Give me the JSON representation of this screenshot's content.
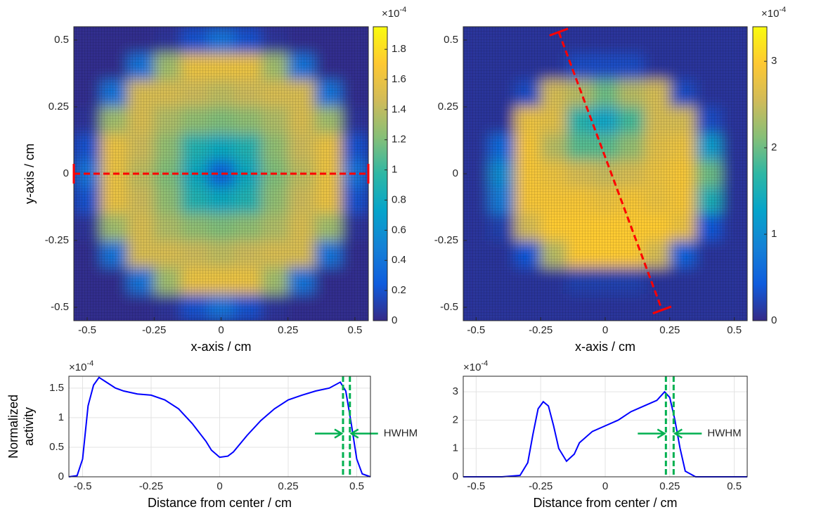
{
  "chart_data": [
    {
      "type": "heatmap",
      "colormap": "parula",
      "x": [
        -0.5,
        -0.4,
        -0.3,
        -0.2,
        -0.1,
        0,
        0.1,
        0.2,
        0.3,
        0.4,
        0.5
      ],
      "y": [
        0.5,
        0.4,
        0.3,
        0.2,
        0.1,
        0,
        -0.1,
        -0.2,
        -0.3,
        -0.4,
        -0.5
      ],
      "z": [
        [
          0.02,
          0.02,
          0.02,
          0.05,
          0.2,
          0.4,
          0.2,
          0.05,
          0.02,
          0.02,
          0.02
        ],
        [
          0.02,
          0.02,
          0.4,
          1.3,
          1.6,
          1.6,
          1.6,
          1.3,
          0.4,
          0.02,
          0.02
        ],
        [
          0.02,
          0.4,
          1.5,
          1.5,
          1.45,
          1.4,
          1.45,
          1.5,
          1.5,
          0.4,
          0.02
        ],
        [
          0.05,
          1.3,
          1.5,
          1.35,
          1.25,
          1.2,
          1.25,
          1.35,
          1.5,
          1.3,
          0.05
        ],
        [
          0.2,
          1.6,
          1.45,
          1.25,
          0.9,
          0.8,
          0.9,
          1.25,
          1.45,
          1.6,
          0.2
        ],
        [
          0.4,
          1.6,
          1.4,
          1.2,
          0.8,
          0.3,
          0.8,
          1.2,
          1.4,
          1.6,
          0.4
        ],
        [
          0.2,
          1.6,
          1.45,
          1.25,
          0.9,
          0.8,
          0.9,
          1.25,
          1.45,
          1.6,
          0.2
        ],
        [
          0.05,
          1.3,
          1.5,
          1.35,
          1.25,
          1.2,
          1.25,
          1.35,
          1.5,
          1.3,
          0.05
        ],
        [
          0.02,
          0.4,
          1.5,
          1.5,
          1.45,
          1.4,
          1.45,
          1.5,
          1.5,
          0.4,
          0.02
        ],
        [
          0.02,
          0.02,
          0.4,
          1.3,
          1.6,
          1.6,
          1.6,
          1.3,
          0.4,
          0.02,
          0.02
        ],
        [
          0.02,
          0.02,
          0.02,
          0.05,
          0.2,
          0.4,
          0.2,
          0.05,
          0.02,
          0.02,
          0.02
        ]
      ],
      "xlim": [
        -0.55,
        0.55
      ],
      "ylim": [
        -0.55,
        0.55
      ],
      "xticks": [
        -0.5,
        -0.25,
        0,
        0.25,
        0.5
      ],
      "yticks": [
        -0.5,
        -0.25,
        0,
        0.25,
        0.5
      ],
      "xlabel": "x-axis / cm",
      "ylabel": "y-axis / cm",
      "colorbar": {
        "clim": [
          0,
          1.95
        ],
        "ticks": [
          0,
          0.2,
          0.4,
          0.6,
          0.8,
          1,
          1.2,
          1.4,
          1.6,
          1.8
        ],
        "multiplier_base": "×10",
        "multiplier_exponent": "-4"
      },
      "profile": {
        "x": [
          -0.55,
          0.55
        ],
        "y": [
          0,
          0
        ],
        "color": "#ff0000"
      }
    },
    {
      "type": "heatmap",
      "colormap": "parula",
      "x": [
        -0.5,
        -0.4,
        -0.3,
        -0.2,
        -0.1,
        0,
        0.1,
        0.2,
        0.3,
        0.4,
        0.5
      ],
      "y": [
        0.5,
        0.4,
        0.3,
        0.2,
        0.1,
        0,
        -0.1,
        -0.2,
        -0.3,
        -0.4,
        -0.5
      ],
      "z": [
        [
          0.1,
          0.1,
          0.1,
          0.1,
          0.1,
          0.1,
          0.1,
          0.1,
          0.1,
          0.1,
          0.1
        ],
        [
          0.1,
          0.1,
          0.1,
          0.1,
          0.3,
          0.3,
          0.3,
          0.1,
          0.1,
          0.1,
          0.1
        ],
        [
          0.1,
          0.1,
          0.3,
          2.6,
          2.4,
          2.0,
          2.4,
          2.6,
          0.3,
          0.1,
          0.1
        ],
        [
          0.1,
          0.1,
          2.8,
          2.7,
          1.6,
          1.3,
          1.8,
          2.6,
          2.6,
          0.3,
          0.1
        ],
        [
          0.1,
          0.6,
          2.9,
          2.4,
          1.9,
          1.9,
          2.2,
          2.7,
          2.8,
          1.2,
          0.1
        ],
        [
          0.1,
          1.0,
          2.9,
          2.8,
          2.6,
          2.5,
          2.6,
          2.8,
          2.9,
          2.0,
          0.1
        ],
        [
          0.1,
          0.8,
          2.9,
          2.9,
          2.9,
          2.8,
          2.9,
          2.8,
          2.9,
          1.5,
          0.1
        ],
        [
          0.1,
          0.2,
          2.6,
          3.0,
          3.0,
          3.0,
          3.0,
          3.0,
          2.8,
          0.4,
          0.1
        ],
        [
          0.1,
          0.1,
          0.4,
          2.4,
          3.0,
          3.0,
          3.0,
          2.6,
          0.5,
          0.1,
          0.1
        ],
        [
          0.1,
          0.1,
          0.1,
          0.1,
          0.2,
          0.2,
          0.2,
          0.1,
          0.1,
          0.1,
          0.1
        ],
        [
          0.1,
          0.1,
          0.1,
          0.1,
          0.1,
          0.1,
          0.1,
          0.1,
          0.1,
          0.1,
          0.1
        ]
      ],
      "xlim": [
        -0.55,
        0.55
      ],
      "ylim": [
        -0.55,
        0.55
      ],
      "xticks": [
        -0.5,
        -0.25,
        0,
        0.25,
        0.5
      ],
      "yticks": [
        -0.5,
        -0.25,
        0,
        0.25,
        0.5
      ],
      "xlabel": "x-axis / cm",
      "colorbar": {
        "clim": [
          0,
          3.4
        ],
        "ticks": [
          0,
          1,
          2,
          3
        ],
        "multiplier_base": "×10",
        "multiplier_exponent": "-4"
      },
      "profile": {
        "x": [
          -0.18,
          0.22
        ],
        "y": [
          0.53,
          -0.51
        ],
        "color": "#ff0000"
      }
    },
    {
      "type": "line",
      "color": "#0000ff",
      "grid": true,
      "x": [
        -0.55,
        -0.52,
        -0.5,
        -0.48,
        -0.46,
        -0.44,
        -0.42,
        -0.38,
        -0.35,
        -0.3,
        -0.25,
        -0.2,
        -0.15,
        -0.1,
        -0.05,
        -0.03,
        0,
        0.03,
        0.05,
        0.1,
        0.15,
        0.2,
        0.25,
        0.3,
        0.35,
        0.4,
        0.44,
        0.46,
        0.48,
        0.5,
        0.52,
        0.55
      ],
      "values": [
        0,
        0.02,
        0.3,
        1.2,
        1.55,
        1.68,
        1.62,
        1.5,
        1.45,
        1.4,
        1.38,
        1.3,
        1.15,
        0.9,
        0.6,
        0.45,
        0.33,
        0.35,
        0.42,
        0.7,
        0.95,
        1.15,
        1.3,
        1.38,
        1.45,
        1.5,
        1.6,
        1.45,
        0.9,
        0.3,
        0.05,
        0
      ],
      "xlim": [
        -0.55,
        0.55
      ],
      "ylim": [
        0,
        1.7
      ],
      "xticks": [
        -0.5,
        -0.25,
        0,
        0.25,
        0.5
      ],
      "yticks": [
        0,
        0.5,
        1,
        1.5
      ],
      "xlabel": "Distance from center / cm",
      "ylabel": [
        "Normalized",
        "activity"
      ],
      "multiplier_base": "×10",
      "multiplier_exponent": "-4",
      "hwhm": {
        "lines": [
          0.45,
          0.475
        ],
        "label": "HWHM",
        "color": "#00b050"
      }
    },
    {
      "type": "line",
      "color": "#0000ff",
      "grid": true,
      "x": [
        -0.55,
        -0.4,
        -0.33,
        -0.3,
        -0.28,
        -0.26,
        -0.24,
        -0.22,
        -0.2,
        -0.18,
        -0.15,
        -0.12,
        -0.1,
        -0.05,
        0,
        0.05,
        0.1,
        0.15,
        0.2,
        0.23,
        0.25,
        0.27,
        0.29,
        0.31,
        0.35,
        0.55
      ],
      "values": [
        0,
        0,
        0.05,
        0.5,
        1.5,
        2.4,
        2.65,
        2.5,
        1.8,
        1.0,
        0.55,
        0.8,
        1.2,
        1.6,
        1.8,
        2.0,
        2.3,
        2.5,
        2.7,
        3.0,
        2.8,
        2.0,
        1.0,
        0.2,
        0,
        0
      ],
      "xlim": [
        -0.55,
        0.55
      ],
      "ylim": [
        0,
        3.55
      ],
      "xticks": [
        -0.5,
        -0.25,
        0,
        0.25,
        0.5
      ],
      "yticks": [
        0,
        1,
        2,
        3
      ],
      "xlabel": "Distance from center / cm",
      "multiplier_base": "×10",
      "multiplier_exponent": "-4",
      "hwhm": {
        "lines": [
          0.235,
          0.265
        ],
        "label": "HWHM",
        "color": "#00b050"
      }
    }
  ]
}
